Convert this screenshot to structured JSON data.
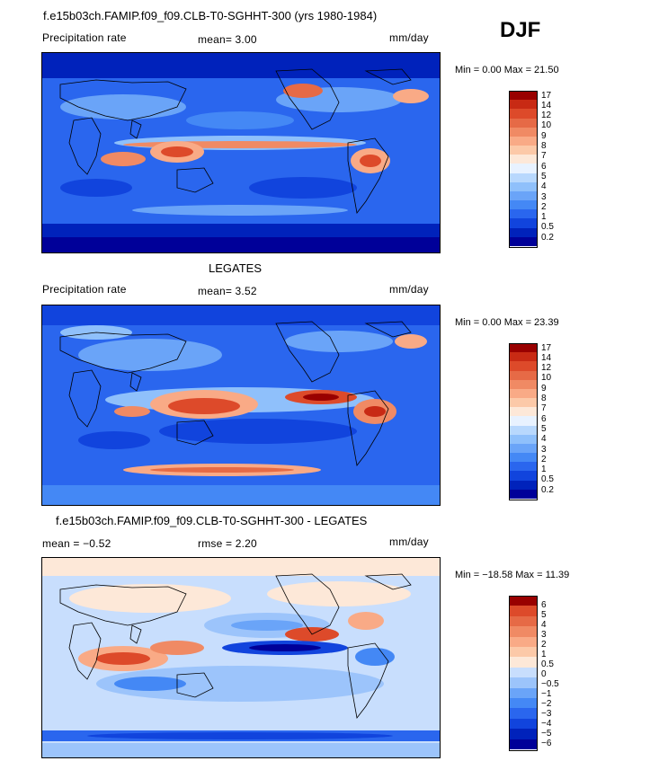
{
  "season": "DJF",
  "panels": [
    {
      "title": "f.e15b03ch.FAMIP.f09_f09.CLB-T0-SGHHT-300 (yrs 1980-1984)",
      "left": "Precipitation rate",
      "center": "mean=   3.00",
      "right": "mm/day",
      "minmax": "Min =   0.00 Max =  21.50",
      "colorbar": {
        "colors": [
          "#000099",
          "#0022bb",
          "#1144dd",
          "#2a66ee",
          "#4488f5",
          "#6aa4f8",
          "#8fc0fb",
          "#b8d8fd",
          "#e8f2ff",
          "#fde8d8",
          "#fcc9a8",
          "#f9aa86",
          "#f08a64",
          "#e66a46",
          "#dd4a2a",
          "#c82a14",
          "#990000"
        ],
        "labels": [
          "17",
          "14",
          "12",
          "10",
          "9",
          "8",
          "7",
          "6",
          "5",
          "4",
          "3",
          "2",
          "1",
          "0.5",
          "0.2"
        ]
      }
    },
    {
      "title": "LEGATES",
      "left": "Precipitation rate",
      "center": "mean=   3.52",
      "right": "mm/day",
      "minmax": "Min =   0.00 Max =  23.39",
      "colorbar": {
        "colors": [
          "#000099",
          "#0022bb",
          "#1144dd",
          "#2a66ee",
          "#4488f5",
          "#6aa4f8",
          "#8fc0fb",
          "#b8d8fd",
          "#e8f2ff",
          "#fde8d8",
          "#fcc9a8",
          "#f9aa86",
          "#f08a64",
          "#e66a46",
          "#dd4a2a",
          "#c82a14",
          "#990000"
        ],
        "labels": [
          "17",
          "14",
          "12",
          "10",
          "9",
          "8",
          "7",
          "6",
          "5",
          "4",
          "3",
          "2",
          "1",
          "0.5",
          "0.2"
        ]
      }
    },
    {
      "title": "f.e15b03ch.FAMIP.f09_f09.CLB-T0-SGHHT-300 - LEGATES",
      "left": "mean =   −0.52",
      "center": "rmse =    2.20",
      "right": "mm/day",
      "minmax": "Min = −18.58 Max =  11.39",
      "colorbar": {
        "colors": [
          "#000099",
          "#0022bb",
          "#1144dd",
          "#2a66ee",
          "#4488f5",
          "#6aa4f8",
          "#9cc4fb",
          "#c8defd",
          "#fde8d8",
          "#fcc9a8",
          "#f9aa86",
          "#f08a64",
          "#e66a46",
          "#dd4a2a",
          "#990000"
        ],
        "labels": [
          "6",
          "5",
          "4",
          "3",
          "2",
          "1",
          "0.5",
          "0",
          "−0.5",
          "−1",
          "−2",
          "−3",
          "−4",
          "−5",
          "−6"
        ]
      }
    }
  ]
}
